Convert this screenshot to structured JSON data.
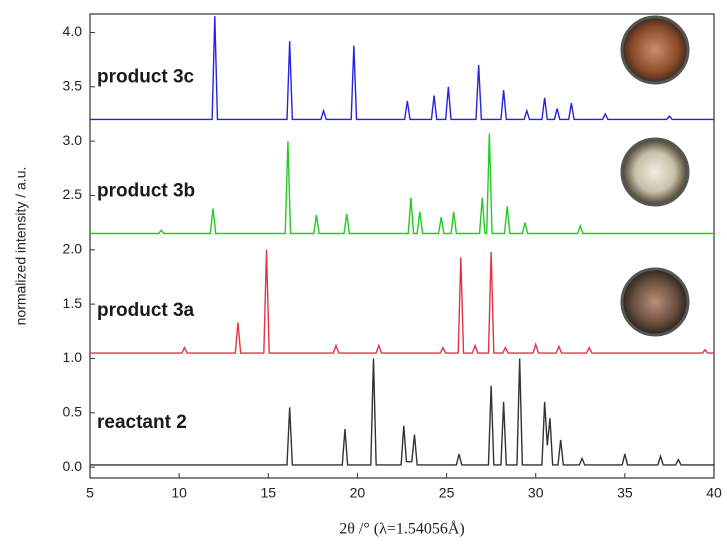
{
  "chart_data": {
    "type": "line",
    "xlabel": "2θ /° (λ=1.54056Å)",
    "ylabel": "normalized intensity / a.u.",
    "xlim": [
      5,
      40
    ],
    "xticks": [
      5,
      10,
      15,
      20,
      25,
      30,
      35,
      40
    ],
    "ylim": [
      -0.1,
      4.17
    ],
    "yticks": [
      {
        "value": 0,
        "label": "0.0"
      },
      0.5,
      {
        "value": 1,
        "label": "1.0"
      },
      1.5,
      {
        "value": 2,
        "label": "2.0"
      },
      2.5,
      {
        "value": 3,
        "label": "3.0"
      },
      3.5,
      {
        "value": 4,
        "label": "4.0"
      }
    ],
    "grid": false,
    "series": [
      {
        "name": "reactant 2",
        "color": "#333333",
        "x": [
          5,
          16.05,
          16.2,
          16.35,
          19.15,
          19.3,
          19.45,
          20.75,
          20.9,
          21.05,
          22.45,
          22.6,
          22.75,
          23.05,
          23.2,
          23.35,
          25.55,
          25.7,
          25.85,
          27.35,
          27.5,
          27.65,
          28.05,
          28.2,
          28.35,
          28.95,
          29.1,
          29.25,
          30.35,
          30.5,
          30.65,
          30.8,
          30.95,
          31.25,
          31.4,
          31.55,
          32.45,
          32.6,
          32.75,
          34.85,
          35.0,
          35.15,
          36.85,
          37.0,
          37.15,
          37.85,
          38.0,
          38.15,
          40
        ],
        "values": [
          0.02,
          0.02,
          0.55,
          0.02,
          0.02,
          0.35,
          0.02,
          0.02,
          1.0,
          0.02,
          0.02,
          0.38,
          0.05,
          0.05,
          0.3,
          0.02,
          0.02,
          0.12,
          0.02,
          0.02,
          0.75,
          0.02,
          0.02,
          0.6,
          0.02,
          0.02,
          1.0,
          0.02,
          0.02,
          0.6,
          0.2,
          0.45,
          0.02,
          0.02,
          0.25,
          0.02,
          0.02,
          0.08,
          0.02,
          0.02,
          0.12,
          0.02,
          0.02,
          0.1,
          0.02,
          0.02,
          0.07,
          0.02,
          0.02
        ]
      },
      {
        "name": "product 3a",
        "color": "#e23444",
        "x": [
          5,
          10.15,
          10.3,
          10.45,
          13.15,
          13.3,
          13.45,
          14.75,
          14.9,
          15.05,
          18.65,
          18.8,
          18.95,
          21.05,
          21.2,
          21.35,
          24.65,
          24.8,
          24.95,
          25.65,
          25.8,
          25.95,
          26.45,
          26.6,
          26.75,
          27.35,
          27.5,
          27.65,
          28.15,
          28.3,
          28.45,
          29.85,
          30.0,
          30.15,
          31.15,
          31.3,
          31.45,
          32.85,
          33.0,
          33.15,
          39.35,
          39.5,
          39.65,
          40
        ],
        "values": [
          1.05,
          1.05,
          1.1,
          1.05,
          1.05,
          1.33,
          1.05,
          1.05,
          2.0,
          1.05,
          1.05,
          1.12,
          1.05,
          1.05,
          1.12,
          1.05,
          1.05,
          1.1,
          1.05,
          1.05,
          1.93,
          1.05,
          1.05,
          1.12,
          1.05,
          1.05,
          1.98,
          1.05,
          1.05,
          1.1,
          1.05,
          1.05,
          1.13,
          1.05,
          1.05,
          1.11,
          1.05,
          1.05,
          1.1,
          1.05,
          1.05,
          1.08,
          1.05,
          1.05
        ]
      },
      {
        "name": "product 3b",
        "color": "#22cc22",
        "x": [
          5,
          8.85,
          9.0,
          9.15,
          11.75,
          11.9,
          12.05,
          15.95,
          16.1,
          16.25,
          17.55,
          17.7,
          17.85,
          19.25,
          19.4,
          19.55,
          22.85,
          23.0,
          23.15,
          23.35,
          23.5,
          23.65,
          24.55,
          24.7,
          24.85,
          25.25,
          25.4,
          25.55,
          26.85,
          27.0,
          27.15,
          27.25,
          27.4,
          27.55,
          28.25,
          28.4,
          28.55,
          29.25,
          29.4,
          29.55,
          32.35,
          32.5,
          32.65,
          40
        ],
        "values": [
          2.15,
          2.15,
          2.18,
          2.15,
          2.15,
          2.38,
          2.15,
          2.15,
          3.0,
          2.15,
          2.15,
          2.32,
          2.15,
          2.15,
          2.33,
          2.15,
          2.15,
          2.48,
          2.15,
          2.15,
          2.35,
          2.15,
          2.15,
          2.3,
          2.15,
          2.15,
          2.35,
          2.15,
          2.15,
          2.48,
          2.15,
          2.15,
          3.07,
          2.15,
          2.15,
          2.4,
          2.15,
          2.15,
          2.25,
          2.15,
          2.15,
          2.22,
          2.15,
          2.15
        ]
      },
      {
        "name": "product 3c",
        "color": "#2424e0",
        "x": [
          5,
          11.85,
          12.0,
          12.15,
          16.05,
          16.2,
          16.35,
          17.95,
          18.1,
          18.25,
          19.65,
          19.8,
          19.95,
          22.65,
          22.8,
          22.95,
          24.15,
          24.3,
          24.45,
          24.95,
          25.1,
          25.25,
          26.65,
          26.8,
          26.95,
          28.05,
          28.2,
          28.35,
          29.35,
          29.5,
          29.65,
          30.35,
          30.5,
          30.65,
          31.05,
          31.2,
          31.35,
          31.85,
          32.0,
          32.15,
          33.75,
          33.9,
          34.05,
          37.35,
          37.5,
          37.65,
          40
        ],
        "values": [
          3.2,
          3.2,
          4.15,
          3.2,
          3.2,
          3.92,
          3.2,
          3.2,
          3.28,
          3.2,
          3.2,
          3.88,
          3.2,
          3.2,
          3.37,
          3.2,
          3.2,
          3.42,
          3.2,
          3.2,
          3.5,
          3.2,
          3.2,
          3.7,
          3.2,
          3.2,
          3.47,
          3.2,
          3.2,
          3.28,
          3.2,
          3.2,
          3.4,
          3.2,
          3.2,
          3.3,
          3.2,
          3.2,
          3.35,
          3.2,
          3.2,
          3.25,
          3.2,
          3.2,
          3.23,
          3.2,
          3.2
        ]
      }
    ]
  }
}
